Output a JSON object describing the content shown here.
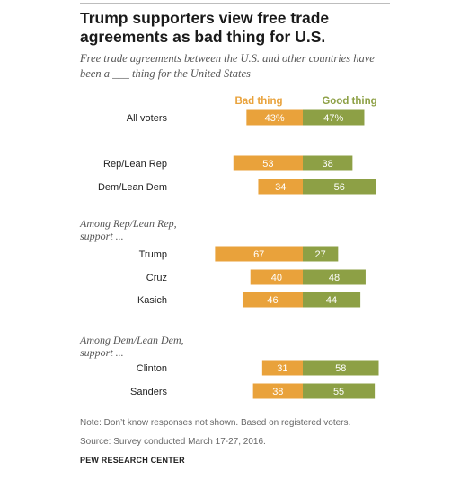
{
  "title": "Trump supporters view free trade agreements as bad thing for U.S.",
  "subtitle": "Free trade agreements between the U.S. and other countries have been a ___ thing for the United States",
  "note": "Note: Don’t know responses not shown. Based on registered voters.",
  "source": "Source: Survey conducted March 17-27, 2016.",
  "brand": "PEW RESEARCH CENTER",
  "colors": {
    "bad": "#e9a23b",
    "good": "#8da045"
  },
  "chart_data": {
    "type": "bar",
    "orientation": "diverging-horizontal",
    "legend": {
      "bad": "Bad thing",
      "good": "Good thing"
    },
    "groups": [
      {
        "heading": "",
        "rows": [
          {
            "label": "All voters",
            "bad": 43,
            "good": 47,
            "bad_text": "43%",
            "good_text": "47%"
          }
        ]
      },
      {
        "heading": "",
        "rows": [
          {
            "label": "Rep/Lean Rep",
            "bad": 53,
            "good": 38,
            "bad_text": "53",
            "good_text": "38"
          },
          {
            "label": "Dem/Lean Dem",
            "bad": 34,
            "good": 56,
            "bad_text": "34",
            "good_text": "56"
          }
        ]
      },
      {
        "heading": "Among Rep/Lean Rep, support ...",
        "heading_lines": [
          "Among Rep/Lean Rep,",
          "support ..."
        ],
        "rows": [
          {
            "label": "Trump",
            "bad": 67,
            "good": 27,
            "bad_text": "67",
            "good_text": "27"
          },
          {
            "label": "Cruz",
            "bad": 40,
            "good": 48,
            "bad_text": "40",
            "good_text": "48"
          },
          {
            "label": "Kasich",
            "bad": 46,
            "good": 44,
            "bad_text": "46",
            "good_text": "44"
          }
        ]
      },
      {
        "heading": "Among Dem/Lean Dem, support ...",
        "heading_lines": [
          "Among Dem/Lean Dem,",
          "support ..."
        ],
        "rows": [
          {
            "label": "Clinton",
            "bad": 31,
            "good": 58,
            "bad_text": "31",
            "good_text": "58"
          },
          {
            "label": "Sanders",
            "bad": 38,
            "good": 55,
            "bad_text": "38",
            "good_text": "55"
          }
        ]
      }
    ]
  }
}
